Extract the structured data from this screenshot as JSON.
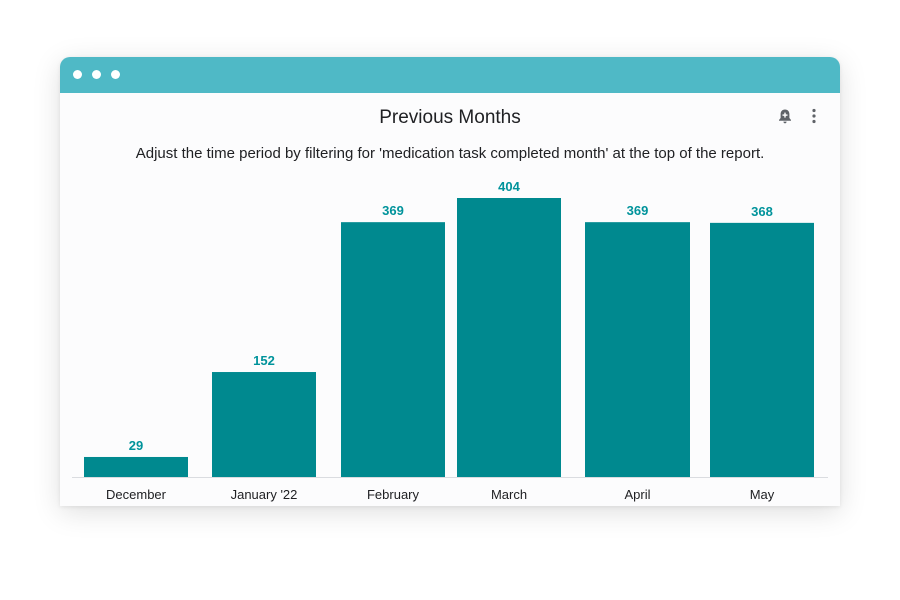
{
  "header": {
    "title": "Previous Months",
    "subtitle": "Adjust the time period by filtering for 'medication task completed month' at the top of the report."
  },
  "icons": {
    "alert": "bell-plus-icon",
    "menu": "more-vertical-icon"
  },
  "colors": {
    "titlebar": "#4fb9c6",
    "bar": "#00898f",
    "value_label": "#00939b"
  },
  "chart_data": {
    "type": "bar",
    "title": "Previous Months",
    "subtitle": "Adjust the time period by filtering for 'medication task completed month' at the top of the report.",
    "categories": [
      "December",
      "January '22",
      "February",
      "March",
      "April",
      "May"
    ],
    "values": [
      29,
      152,
      369,
      404,
      369,
      368
    ],
    "xlabel": "",
    "ylabel": "",
    "ylim": [
      0,
      404
    ],
    "grid": false,
    "legend": "none",
    "data_labels": true
  }
}
